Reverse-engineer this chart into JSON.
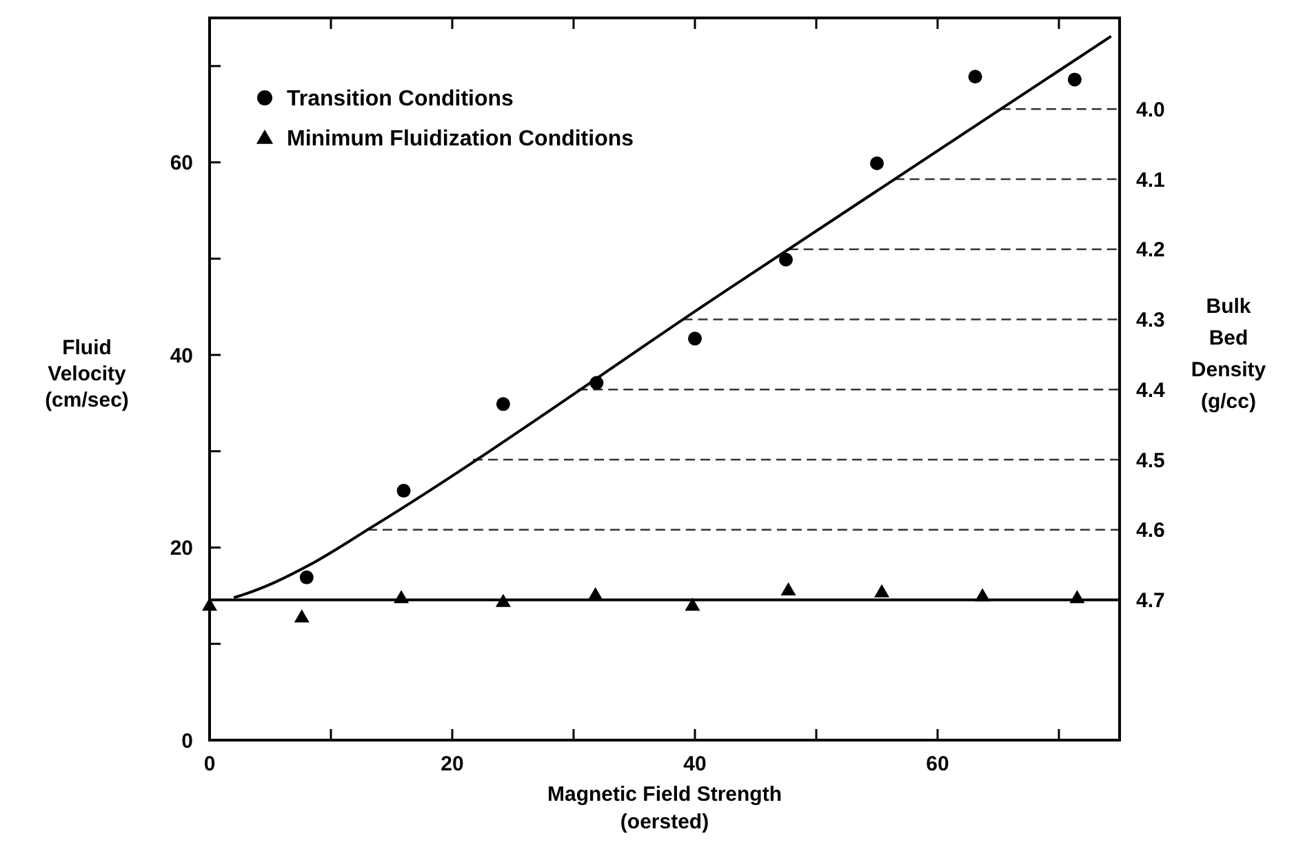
{
  "chart_data": {
    "type": "scatter",
    "xlabel": "Magnetic Field Strength (oersted)",
    "ylabel": "Fluid Velocity (cm/sec)",
    "y2label": "Bulk Bed Density (g/cc)",
    "xlim": [
      0,
      75
    ],
    "xticks": [
      0,
      {
        "value": 10,
        "label": null
      },
      20,
      {
        "value": 30,
        "label": null
      },
      40,
      {
        "value": 50,
        "label": null
      },
      60,
      {
        "value": 70,
        "label": null
      }
    ],
    "ylim": [
      0,
      75
    ],
    "yticks": [
      0,
      {
        "value": 10,
        "label": null
      },
      20,
      {
        "value": 30,
        "label": null
      },
      40,
      {
        "value": 50,
        "label": null
      },
      60,
      {
        "value": 70,
        "label": null
      }
    ],
    "y2lim": [
      4.9,
      3.87
    ],
    "y2ticks": [
      {
        "value": 4.0,
        "label": "4.0"
      },
      4.1,
      4.2,
      4.3,
      4.4,
      4.5,
      4.6,
      4.7
    ],
    "legend": "top left",
    "grid": false,
    "series": [
      {
        "name": "Transition Conditions",
        "color": "#000000",
        "marker": "circle",
        "x": [
          8,
          16,
          24.2,
          31.9,
          40,
          47.5,
          55,
          63.1,
          71.3
        ],
        "values": [
          16.9,
          25.9,
          34.9,
          37.1,
          41.7,
          49.9,
          59.9,
          68.9,
          68.6
        ]
      },
      {
        "name": "Minimum Fluidization Conditions",
        "color": "#000000",
        "marker": "triangle",
        "x": [
          0,
          7.6,
          15.8,
          24.2,
          31.8,
          39.8,
          47.7,
          55.4,
          63.7,
          71.5
        ],
        "values": [
          14,
          12.8,
          14.8,
          14.4,
          15.1,
          14,
          15.6,
          15.4,
          15,
          14.8
        ]
      },
      {
        "type": "line",
        "color": "#000000",
        "marker": "none",
        "line_style": "solid",
        "x": [
          2,
          3,
          5.4,
          8.1,
          13.6,
          42.7,
          74.3
        ],
        "values": [
          14.8,
          15.2,
          16.4,
          18.1,
          22.3,
          46.8,
          73.1
        ]
      }
    ],
    "ref_lines": [
      {
        "axis": "y2",
        "value": 4.0,
        "line_style": "dashed"
      },
      {
        "axis": "y2",
        "value": 4.1,
        "line_style": "dashed"
      },
      {
        "axis": "y2",
        "value": 4.2,
        "line_style": "dashed"
      },
      {
        "axis": "y2",
        "value": 4.3,
        "line_style": "dashed"
      },
      {
        "axis": "y2",
        "value": 4.4,
        "line_style": "dashed"
      },
      {
        "axis": "y2",
        "value": 4.5,
        "line_style": "dashed"
      },
      {
        "axis": "y2",
        "value": 4.6,
        "line_style": "dashed"
      },
      {
        "axis": "y2",
        "value": 4.7,
        "line_style": "solid"
      }
    ]
  }
}
